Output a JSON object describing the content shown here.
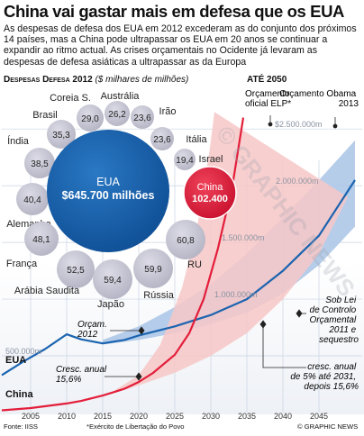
{
  "title": "China vai gastar mais em defesa que os EUA",
  "intro": "As despesas de defesa dos EUA em 2012 excederam as do conjunto dos próximos 14 países, mas a China pode ultrapassar os EUA em 20 anos se continuar a expandir ao ritmo actual. As crises orçamentais no Ocidente já levaram as despesas de defesa asiáticas a ultrapassar as da Europa",
  "spending_heading": "Despesas Defesa 2012",
  "spending_unit": "($ milhares de milhões)",
  "projection_heading": "ATÉ 2050",
  "bubbles": {
    "usa_name": "EUA",
    "usa_value": "$645.700 milhões",
    "china_name": "China",
    "china_value": "102.400",
    "countries": [
      {
        "name": "Coreia S.",
        "value": "29,0"
      },
      {
        "name": "Austrália",
        "value": "26,2"
      },
      {
        "name": "Irão",
        "value": "23,6"
      },
      {
        "name": "Itália",
        "value": "23,6"
      },
      {
        "name": "Israel",
        "value": "19,4"
      },
      {
        "name": "Brasil",
        "value": "35,3"
      },
      {
        "name": "Índia",
        "value": "38,5"
      },
      {
        "name": "Alemanha",
        "value": "40,4"
      },
      {
        "name": "França",
        "value": "48,1"
      },
      {
        "name": "Arábia Saudita",
        "value": "52,5"
      },
      {
        "name": "Japão",
        "value": "59,4"
      },
      {
        "name": "Rússia",
        "value": "59,9"
      },
      {
        "name": "RU",
        "value": "60,8"
      }
    ]
  },
  "chart_data": {
    "type": "line",
    "x": [
      2005,
      2010,
      2015,
      2020,
      2025,
      2030,
      2035,
      2040,
      2045
    ],
    "x_tick_labels": [
      "2005",
      "2010",
      "2015",
      "2020",
      "2025",
      "2030",
      "2035",
      "2040",
      "2045"
    ],
    "y_tick_labels": [
      "500.000m",
      "1.000.000m",
      "1.500.000m",
      "2.000.000m",
      "$2.500.000m"
    ],
    "xlim": [
      2001,
      2051
    ],
    "ylim": [
      0,
      2700000
    ],
    "grid": true,
    "series": [
      {
        "name": "EUA",
        "color": "#1b64b0",
        "points": [
          [
            2001,
            330000
          ],
          [
            2004,
            450000
          ],
          [
            2007,
            560000
          ],
          [
            2010,
            690000
          ],
          [
            2012,
            645700
          ],
          [
            2015,
            610000
          ],
          [
            2018,
            640000
          ],
          [
            2020,
            680000
          ],
          [
            2025,
            760000
          ],
          [
            2030,
            860000
          ],
          [
            2035,
            1000000
          ],
          [
            2040,
            1250000
          ],
          [
            2045,
            1560000
          ],
          [
            2050,
            2050000
          ]
        ]
      },
      {
        "name": "China",
        "color": "#e31e3a",
        "points": [
          [
            2001,
            20000
          ],
          [
            2005,
            40000
          ],
          [
            2010,
            80000
          ],
          [
            2012,
            102400
          ],
          [
            2015,
            150000
          ],
          [
            2018,
            210000
          ],
          [
            2020,
            270000
          ],
          [
            2022,
            350000
          ],
          [
            2025,
            510000
          ],
          [
            2027,
            700000
          ],
          [
            2029,
            1000000
          ],
          [
            2031,
            1450000
          ],
          [
            2033,
            2000000
          ],
          [
            2034.5,
            2600000
          ]
        ]
      }
    ],
    "bands": [
      {
        "name": "Orçamento Obama 2013",
        "color": "#a9c4e6",
        "upper": [
          [
            2015,
            640000
          ],
          [
            2020,
            760000
          ],
          [
            2025,
            930000
          ],
          [
            2030,
            1130000
          ],
          [
            2035,
            1400000
          ],
          [
            2040,
            1720000
          ],
          [
            2045,
            2050000
          ],
          [
            2050,
            2400000
          ]
        ],
        "lower": [
          [
            2015,
            600000
          ],
          [
            2020,
            640000
          ],
          [
            2025,
            700000
          ],
          [
            2030,
            780000
          ],
          [
            2035,
            880000
          ],
          [
            2040,
            1050000
          ],
          [
            2045,
            1300000
          ],
          [
            2050,
            1640000
          ]
        ]
      },
      {
        "name": "Orçamento oficial ELP*",
        "color": "#f7c7c7",
        "upper": [
          [
            2012,
            102400
          ],
          [
            2016,
            170000
          ],
          [
            2020,
            330000
          ],
          [
            2023,
            600000
          ],
          [
            2026,
            1100000
          ],
          [
            2028,
            1600000
          ],
          [
            2029.8,
            2300000
          ],
          [
            2030.5,
            2650000
          ]
        ],
        "lower": [
          [
            2012,
            102400
          ],
          [
            2016,
            160000
          ],
          [
            2020,
            240000
          ],
          [
            2025,
            350000
          ],
          [
            2030,
            500000
          ],
          [
            2035,
            700000
          ],
          [
            2040,
            1000000
          ],
          [
            2045,
            1400000
          ],
          [
            2049,
            1900000
          ]
        ]
      }
    ],
    "annotations": [
      {
        "text": "Orçamento oficial ELP*",
        "x": 2034,
        "y": 2350000
      },
      {
        "text": "Orçamento Obama 2013",
        "x": 2049,
        "y": 2330000
      },
      {
        "text": "Orçam. 2012",
        "x": 2020,
        "y": 690000
      },
      {
        "text": "Sob Lei de Controlo Orçamental 2011 e sequestro",
        "x": 2050,
        "y": 900000
      },
      {
        "text": "Cresc. anual 15,6%",
        "x": 2025,
        "y": 380000
      },
      {
        "text": "cresc. anual de 5% até 2031, depois 15,6%",
        "x": 2040,
        "y": 250000
      }
    ]
  },
  "chart_labels": {
    "usa": "EUA",
    "china": "China",
    "official_budget": [
      "Orçamento",
      "oficial ELP*"
    ],
    "obama_budget": [
      "Orçamento Obama",
      "2013"
    ],
    "budget_2012": [
      "Orçam.",
      "2012"
    ],
    "sequester": [
      "Sob Lei",
      "de Controlo",
      "Orçamental",
      "2011 e",
      "sequestro"
    ],
    "growth_china": [
      "Cresc. anual",
      "15,6%"
    ],
    "growth_alt": [
      "cresc. anual",
      "de 5% até 2031,",
      "depois 15,6%"
    ]
  },
  "source": "Fonte: IISS",
  "footnote": "*Exército de Libertação do Povo",
  "credit": "© GRAPHIC NEWS",
  "watermark": "© GRAPHIC NEWS"
}
